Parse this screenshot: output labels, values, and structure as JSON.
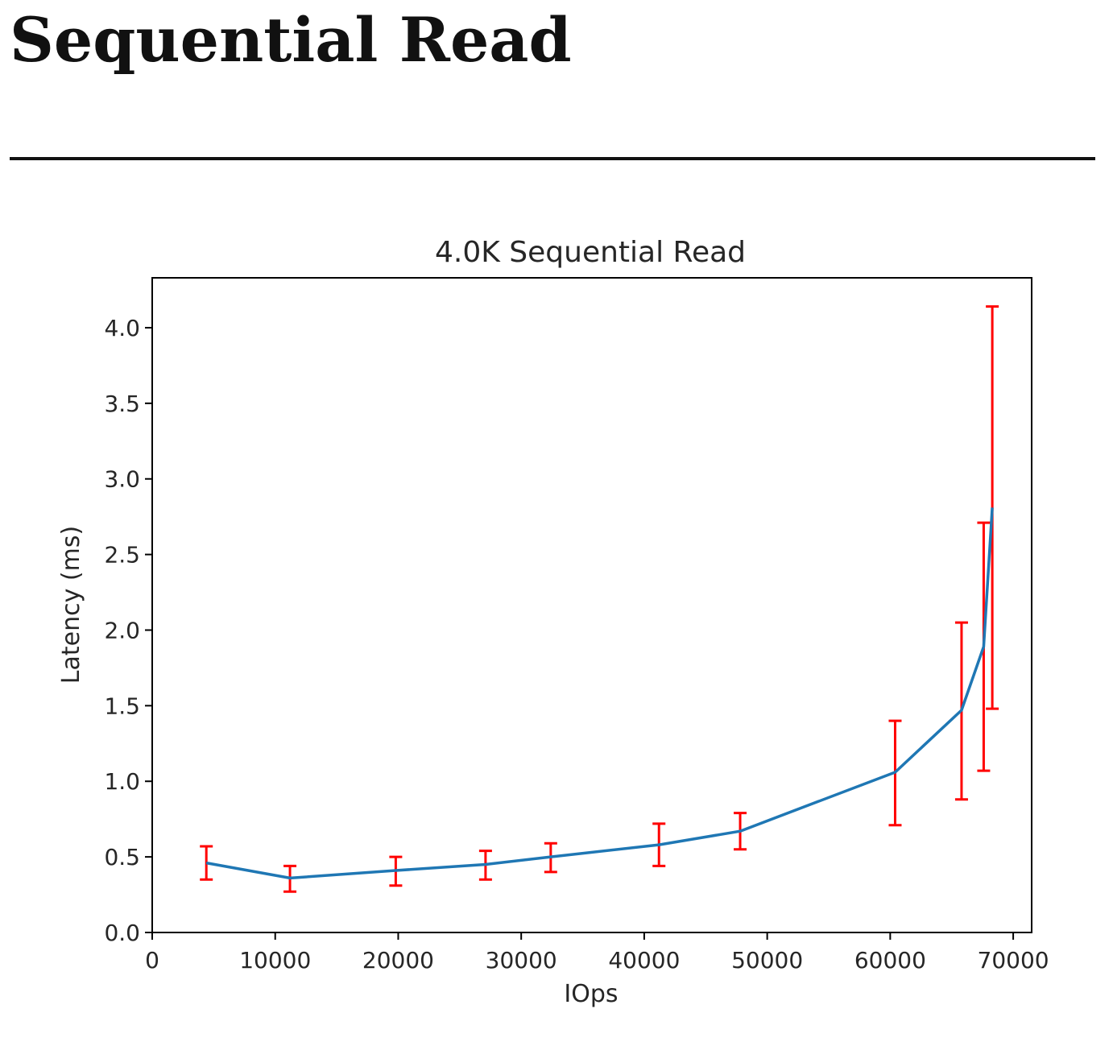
{
  "page": {
    "heading": "Sequential Read"
  },
  "colors": {
    "line": "#1f77b4",
    "errorbar": "#ff0000",
    "axis": "#000000"
  },
  "chart_data": {
    "type": "line",
    "title": "4.0K  Sequential Read",
    "xlabel": "IOps",
    "ylabel": "Latency (ms)",
    "xlim": [
      0,
      71500
    ],
    "ylim": [
      0,
      4.33
    ],
    "xticks": [
      0,
      10000,
      20000,
      30000,
      40000,
      50000,
      60000,
      70000
    ],
    "yticks": [
      0.0,
      0.5,
      1.0,
      1.5,
      2.0,
      2.5,
      3.0,
      3.5,
      4.0
    ],
    "grid": false,
    "legend": "none",
    "series": [
      {
        "points": [
          {
            "x": 4400,
            "y": 0.46,
            "err_low": 0.35,
            "err_high": 0.57
          },
          {
            "x": 11200,
            "y": 0.36,
            "err_low": 0.27,
            "err_high": 0.44
          },
          {
            "x": 19800,
            "y": 0.41,
            "err_low": 0.31,
            "err_high": 0.5
          },
          {
            "x": 27100,
            "y": 0.45,
            "err_low": 0.35,
            "err_high": 0.54
          },
          {
            "x": 32400,
            "y": 0.5,
            "err_low": 0.4,
            "err_high": 0.59
          },
          {
            "x": 41200,
            "y": 0.58,
            "err_low": 0.44,
            "err_high": 0.72
          },
          {
            "x": 47800,
            "y": 0.67,
            "err_low": 0.55,
            "err_high": 0.79
          },
          {
            "x": 60400,
            "y": 1.06,
            "err_low": 0.71,
            "err_high": 1.4
          },
          {
            "x": 65800,
            "y": 1.47,
            "err_low": 0.88,
            "err_high": 2.05
          },
          {
            "x": 67600,
            "y": 1.89,
            "err_low": 1.07,
            "err_high": 2.71
          },
          {
            "x": 68300,
            "y": 2.81,
            "err_low": 1.48,
            "err_high": 4.14
          }
        ]
      }
    ]
  }
}
